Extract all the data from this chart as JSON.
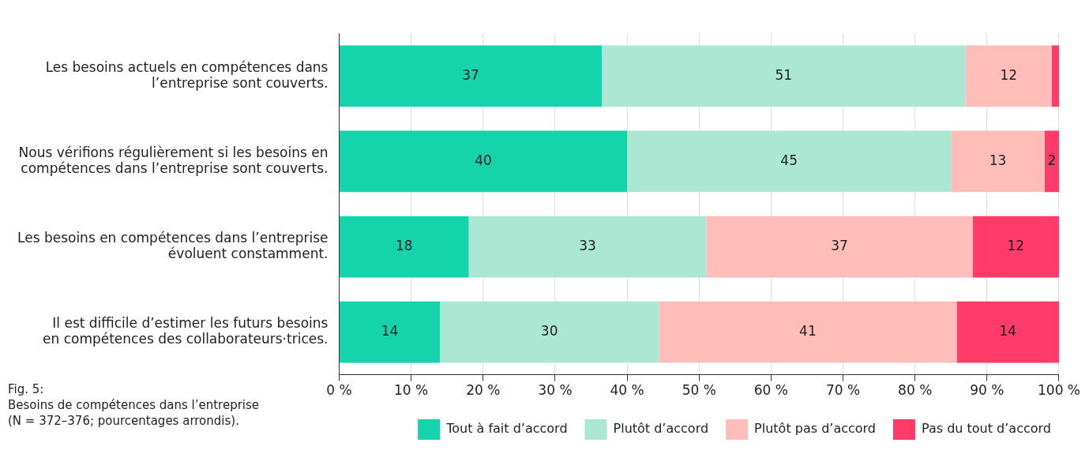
{
  "chart_data": {
    "type": "bar",
    "orientation": "horizontal",
    "stacked": true,
    "categories": [
      "Les besoins actuels en compétences dans l’entreprise sont couverts.",
      "Nous vérifions régulièrement si les besoins en compétences dans l’entreprise sont couverts.",
      "Les besoins en compétences dans l’entreprise évoluent constamment.",
      "Il est difficile d’estimer les futurs besoins en compétences des collaborateurs·trices."
    ],
    "series": [
      {
        "name": "Tout à fait d’accord",
        "color": "#15d3ab",
        "values": [
          36.5,
          40,
          18,
          14
        ],
        "value_labels": [
          "37",
          "40",
          "18",
          "14"
        ]
      },
      {
        "name": "Plutôt d’accord",
        "color": "#abe8d4",
        "values": [
          50.5,
          45,
          33,
          30.4
        ],
        "value_labels": [
          "51",
          "45",
          "33",
          "30"
        ]
      },
      {
        "name": "Plutôt pas d’accord",
        "color": "#ffbdb9",
        "values": [
          12,
          13,
          37,
          41.4
        ],
        "value_labels": [
          "12",
          "13",
          "37",
          "41"
        ]
      },
      {
        "name": "Pas du tout d’accord",
        "color": "#ff3b69",
        "values": [
          1,
          2,
          12,
          14.2
        ],
        "value_labels": [
          null,
          "2",
          "12",
          "14"
        ]
      }
    ],
    "xlim": [
      0,
      100
    ],
    "xticks": [
      {
        "value": 0,
        "label": "0 %"
      },
      {
        "value": 10,
        "label": "10 %"
      },
      {
        "value": 20,
        "label": "20 %"
      },
      {
        "value": 30,
        "label": "30 %"
      },
      {
        "value": 40,
        "label": "40 %"
      },
      {
        "value": 50,
        "label": "50 %"
      },
      {
        "value": 60,
        "label": "60 %"
      },
      {
        "value": 70,
        "label": "70 %"
      },
      {
        "value": 80,
        "label": "80 %"
      },
      {
        "value": 90,
        "label": "90 %"
      },
      {
        "value": 100,
        "label": "100 %"
      }
    ],
    "grid": "x",
    "legend": "bottom",
    "annotations": [
      "Fig. 5:",
      "Besoins de compétences dans l’entreprise (N = 372–376; pourcentages arrondis)."
    ]
  }
}
